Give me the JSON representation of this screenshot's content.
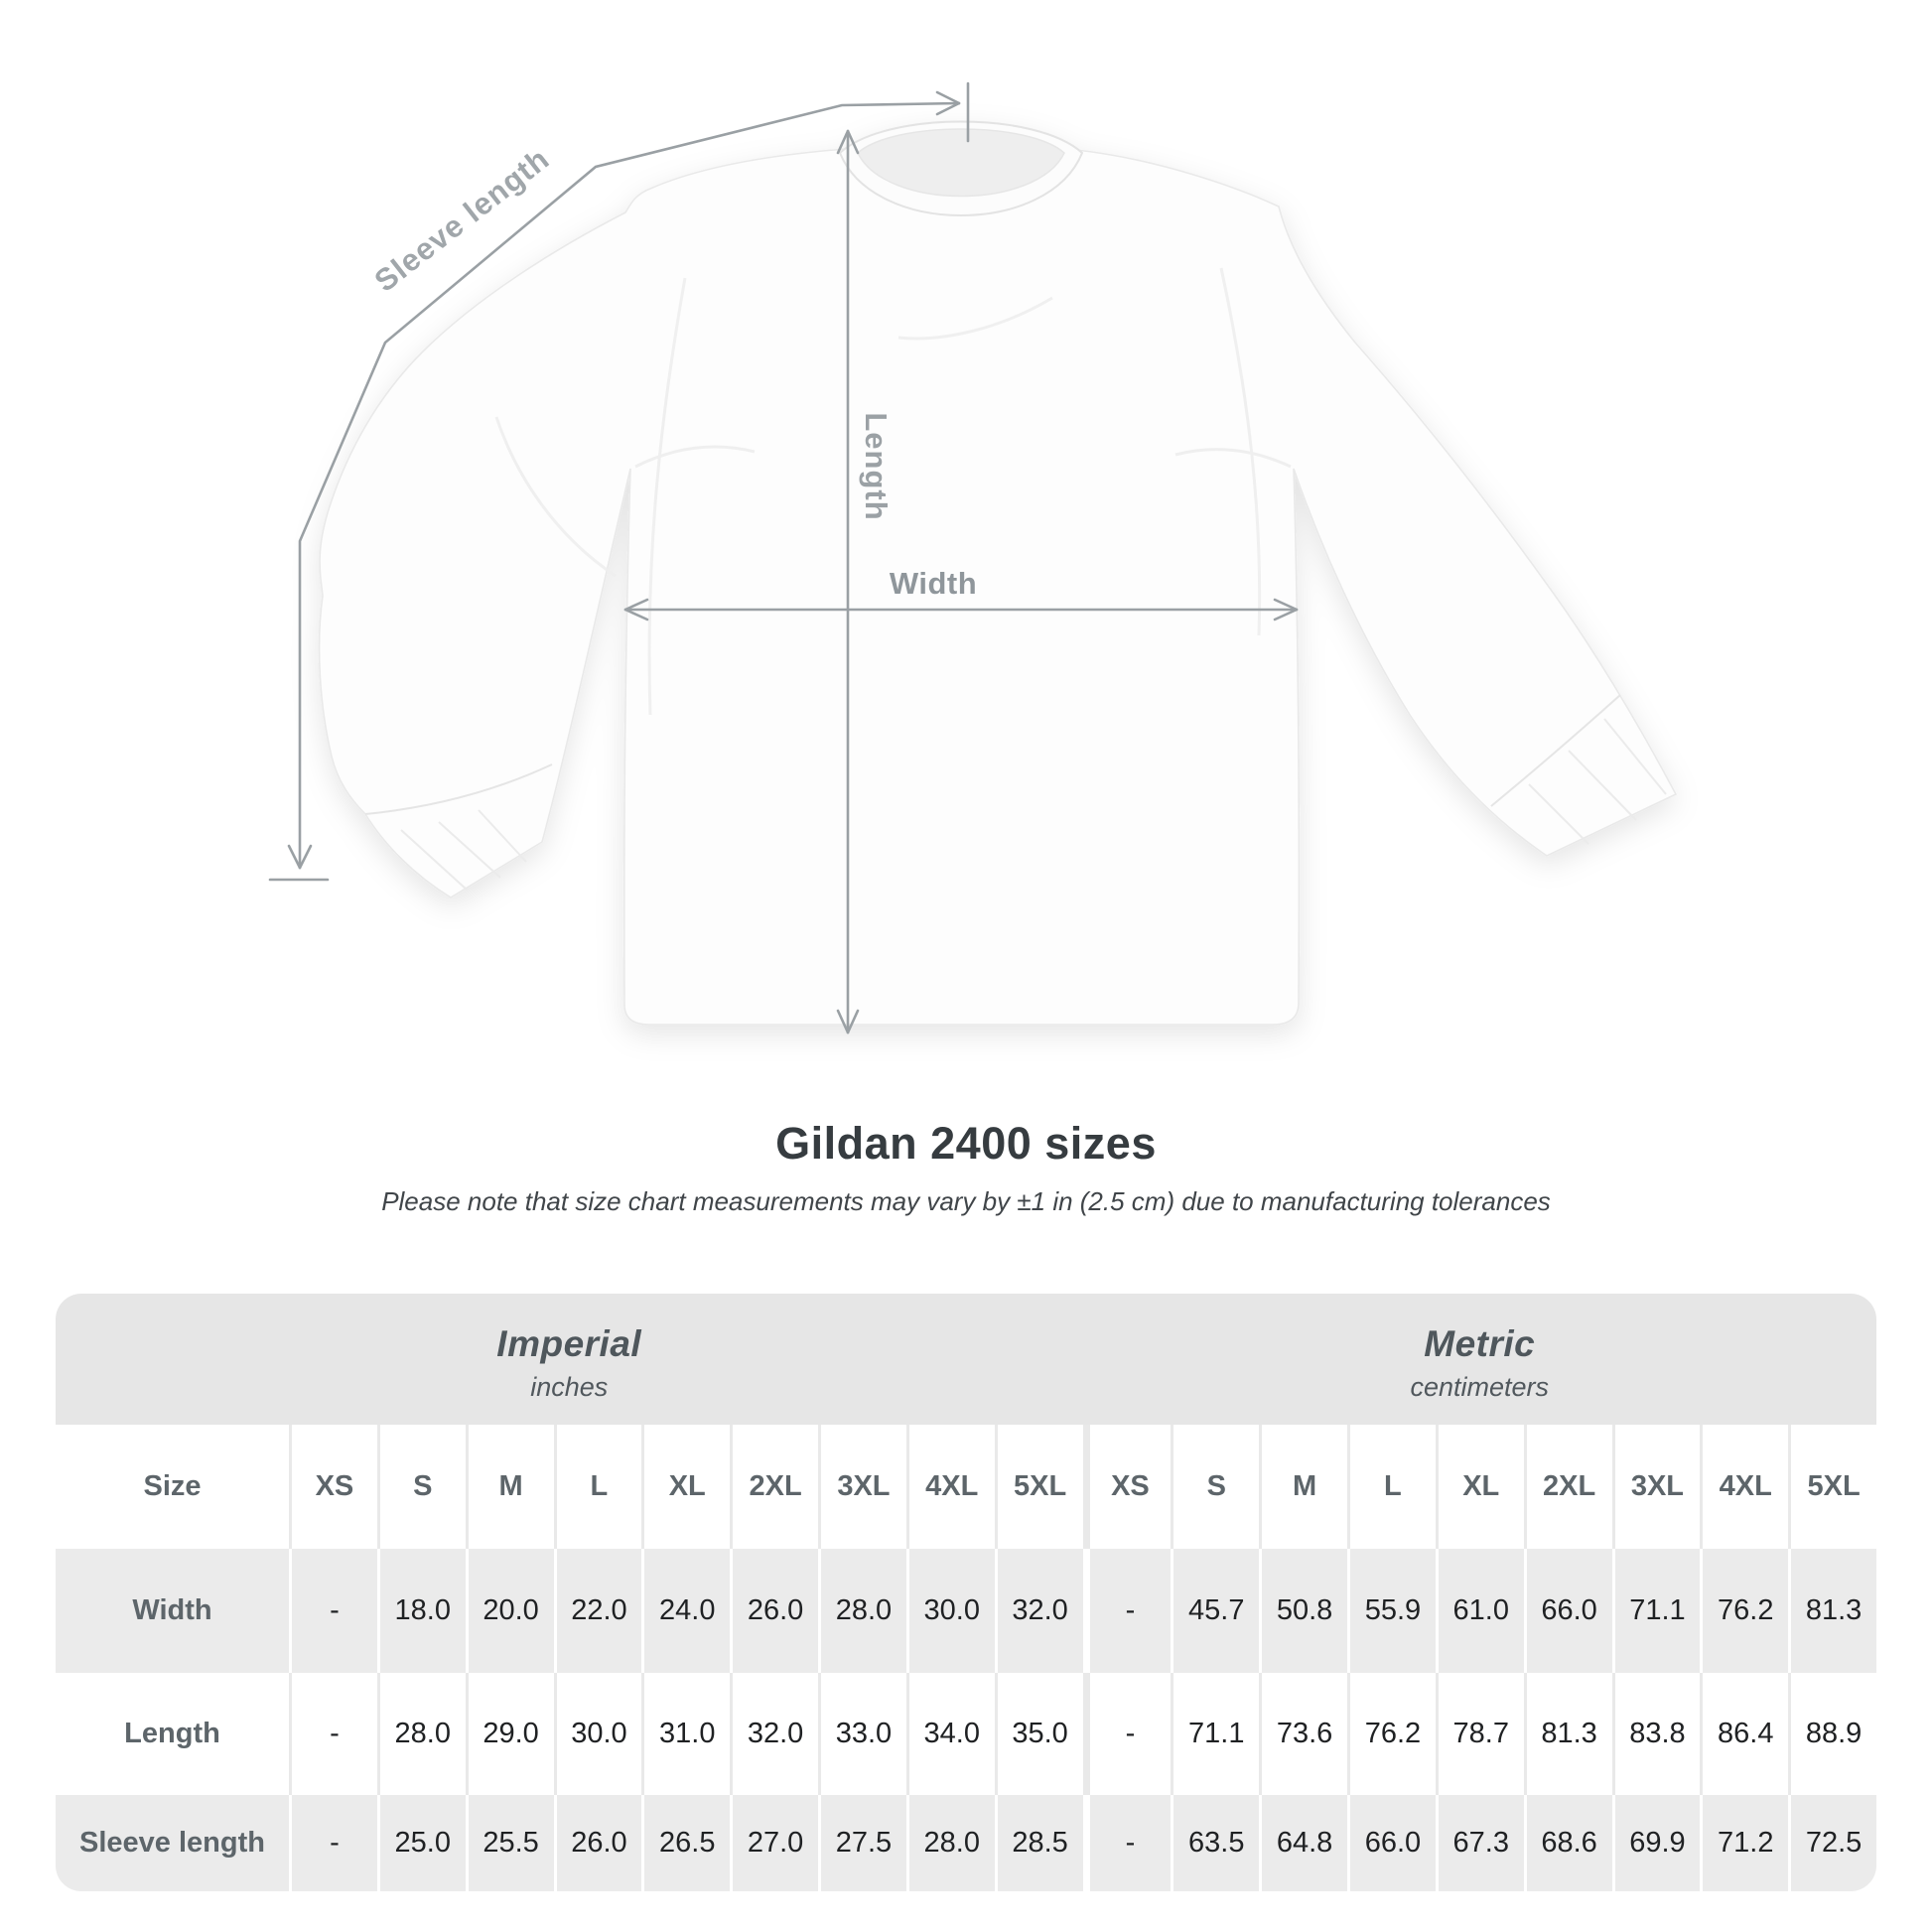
{
  "diagram": {
    "sleeve_label": "Sleeve length",
    "length_label": "Length",
    "width_label": "Width"
  },
  "heading": {
    "title": "Gildan 2400 sizes",
    "subtitle": "Please note that size chart measurements may vary by ±1 in (2.5 cm) due to manufacturing tolerances"
  },
  "table": {
    "size_header": "Size",
    "groups": [
      {
        "name": "Imperial",
        "unit": "inches"
      },
      {
        "name": "Metric",
        "unit": "centimeters"
      }
    ],
    "sizes": [
      "XS",
      "S",
      "M",
      "L",
      "XL",
      "2XL",
      "3XL",
      "4XL",
      "5XL"
    ],
    "rows": [
      {
        "label": "Width",
        "imperial": [
          "-",
          "18.0",
          "20.0",
          "22.0",
          "24.0",
          "26.0",
          "28.0",
          "30.0",
          "32.0"
        ],
        "metric": [
          "-",
          "45.7",
          "50.8",
          "55.9",
          "61.0",
          "66.0",
          "71.1",
          "76.2",
          "81.3"
        ]
      },
      {
        "label": "Length",
        "imperial": [
          "-",
          "28.0",
          "29.0",
          "30.0",
          "31.0",
          "32.0",
          "33.0",
          "34.0",
          "35.0"
        ],
        "metric": [
          "-",
          "71.1",
          "73.6",
          "76.2",
          "78.7",
          "81.3",
          "83.8",
          "86.4",
          "88.9"
        ]
      },
      {
        "label": "Sleeve length",
        "imperial": [
          "-",
          "25.0",
          "25.5",
          "26.0",
          "26.5",
          "27.0",
          "27.5",
          "28.0",
          "28.5"
        ],
        "metric": [
          "-",
          "63.5",
          "64.8",
          "66.0",
          "67.3",
          "68.6",
          "69.9",
          "71.2",
          "72.5"
        ]
      }
    ]
  },
  "chart_data": {
    "type": "table",
    "title": "Gildan 2400 sizes",
    "note": "Please note that size chart measurements may vary by ±1 in (2.5 cm) due to manufacturing tolerances",
    "unit_groups": [
      "Imperial (inches)",
      "Metric (centimeters)"
    ],
    "columns": [
      "Size",
      "XS",
      "S",
      "M",
      "L",
      "XL",
      "2XL",
      "3XL",
      "4XL",
      "5XL",
      "XS",
      "S",
      "M",
      "L",
      "XL",
      "2XL",
      "3XL",
      "4XL",
      "5XL"
    ],
    "rows": [
      [
        "Width",
        "-",
        "18.0",
        "20.0",
        "22.0",
        "24.0",
        "26.0",
        "28.0",
        "30.0",
        "32.0",
        "-",
        "45.7",
        "50.8",
        "55.9",
        "61.0",
        "66.0",
        "71.1",
        "76.2",
        "81.3"
      ],
      [
        "Length",
        "-",
        "28.0",
        "29.0",
        "30.0",
        "31.0",
        "32.0",
        "33.0",
        "34.0",
        "35.0",
        "-",
        "71.1",
        "73.6",
        "76.2",
        "78.7",
        "81.3",
        "83.8",
        "86.4",
        "88.9"
      ],
      [
        "Sleeve length",
        "-",
        "25.0",
        "25.5",
        "26.0",
        "26.5",
        "27.0",
        "27.5",
        "28.0",
        "28.5",
        "-",
        "63.5",
        "64.8",
        "66.0",
        "67.3",
        "68.6",
        "69.9",
        "71.2",
        "72.5"
      ]
    ]
  },
  "colors": {
    "band_bg": "#e6e6e6",
    "row_alt_bg": "#ebebeb",
    "label_text": "#5d656a",
    "value_text": "#1f2123",
    "title_text": "#363c40",
    "measure_line": "#9aa0a4",
    "diagram_label": "#a0a6aa"
  }
}
